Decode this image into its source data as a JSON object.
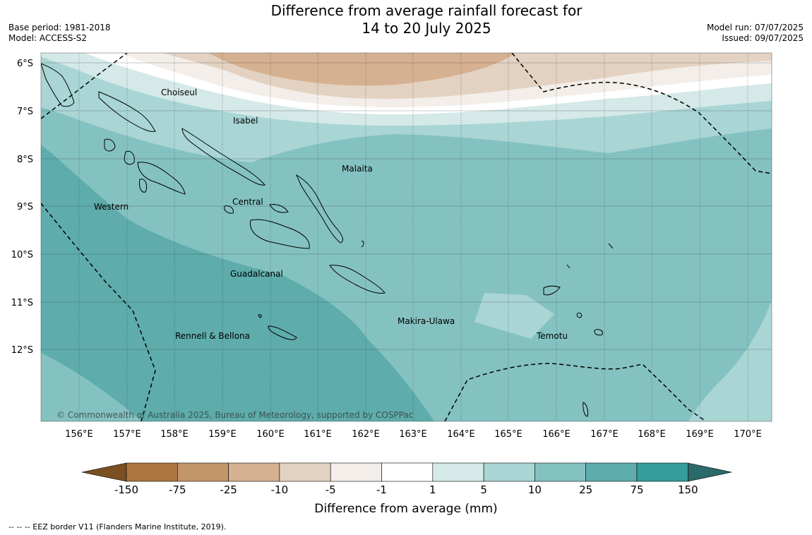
{
  "title": {
    "line1": "Difference from average rainfall forecast for",
    "line2": "14 to 20 July 2025"
  },
  "meta_left": {
    "base_period": "Base period: 1981-2018",
    "model": "Model: ACCESS-S2"
  },
  "meta_right": {
    "model_run": "Model run: 07/07/2025",
    "issued": "Issued: 09/07/2025"
  },
  "map": {
    "lat_labels": [
      "6°S",
      "7°S",
      "8°S",
      "9°S",
      "10°S",
      "11°S",
      "12°S"
    ],
    "lon_labels": [
      "156°E",
      "157°E",
      "158°E",
      "159°E",
      "160°E",
      "161°E",
      "162°E",
      "163°E",
      "164°E",
      "165°E",
      "166°E",
      "167°E",
      "168°E",
      "169°E",
      "170°E"
    ],
    "provinces": [
      "Choiseul",
      "Isabel",
      "Malaita",
      "Western",
      "Central",
      "Guadalcanal",
      "Makira-Ulawa",
      "Rennell & Bellona",
      "Temotu"
    ],
    "copyright": "© Commonwealth of Australia 2025, Bureau of Meteorology, supported by COSPPac"
  },
  "colorbar": {
    "tick_labels": [
      "-150",
      "-75",
      "-25",
      "-10",
      "-5",
      "-1",
      "1",
      "5",
      "10",
      "25",
      "75",
      "150"
    ],
    "colors": [
      "#7a4f22",
      "#ad7541",
      "#c39669",
      "#d5b191",
      "#e3d2c2",
      "#f3eee9",
      "#ffffff",
      "#d4e9e8",
      "#a9d5d5",
      "#84c2c1",
      "#5eacac",
      "#339e9c",
      "#2a6a68"
    ],
    "title": "Difference from average (mm)"
  },
  "footer": "--  --  -- EEZ border V11 (Flanders Marine Institute, 2019)."
}
